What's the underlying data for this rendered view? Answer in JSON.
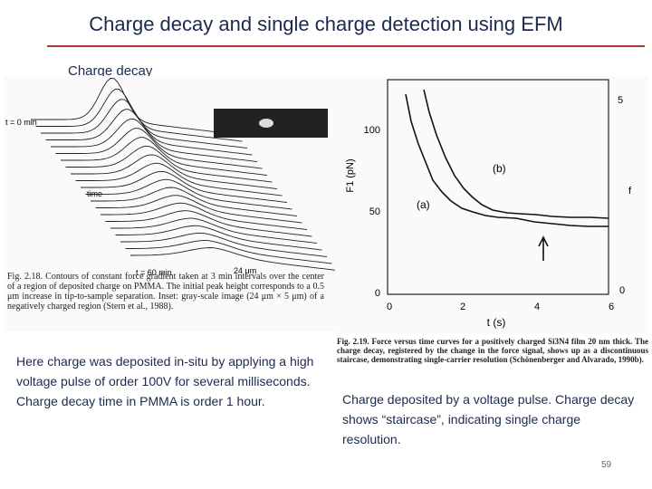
{
  "header": {
    "title": "Charge decay and single charge detection using EFM"
  },
  "subtitle": "Charge decay",
  "left_figure": {
    "labels": [
      "t = 0 min",
      "time",
      "t = 60 min",
      "24 μm"
    ],
    "caption": "Fig. 2.18. Contours of constant force gradient taken at 3 min intervals over the center of a region of deposited charge on PMMA. The initial peak height corresponds to a 0.5 μm increase in tip-to-sample separation. Inset: gray-scale image (24 μm × 5 μm) of a negatively charged region (Stern et al., 1988)."
  },
  "left_text": "Here charge was deposited in-situ by applying a high voltage pulse of order 100V for several milliseconds. Charge decay time in PMMA is order 1 hour.",
  "right_figure": {
    "y_label": "F1 (pN)",
    "x_label": "t (s)",
    "y_tick_labels": [
      "100",
      "50",
      "0"
    ],
    "x_tick_labels": [
      "0",
      "2",
      "4",
      "6"
    ],
    "right_tick_labels": [
      "5",
      "0"
    ],
    "right_label": "f",
    "curve_labels": [
      "(a)",
      "(b)"
    ],
    "caption": "Fig. 2.19. Force versus time curves for a positively charged Si3N4 film 20 nm thick. The charge decay, registered by the change in the force signal, shows up as a discontinuous staircase, demonstrating single-carrier resolution (Schönenberger and Alvarado, 1990b)."
  },
  "right_text": "Charge deposited by a voltage pulse. Charge decay shows “staircase”, indicating single charge resolution.",
  "page_number": "59"
}
